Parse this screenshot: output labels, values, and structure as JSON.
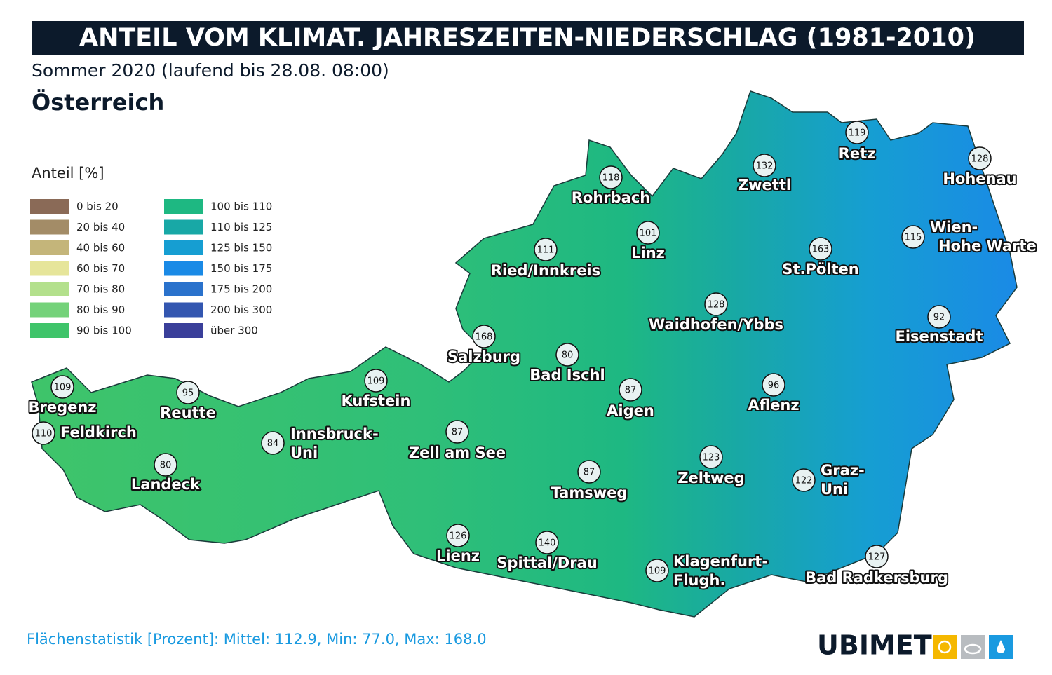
{
  "header": {
    "title": "ANTEIL VOM KLIMAT. JAHRESZEITEN-NIEDERSCHLAG (1981-2010)",
    "subtitle": "Sommer 2020 (laufend bis 28.08. 08:00)",
    "region": "Österreich"
  },
  "legend": {
    "title": "Anteil [%]",
    "items": [
      {
        "label": "0 bis 20",
        "color": "#8a6a57"
      },
      {
        "label": "20 bis 40",
        "color": "#a38c67"
      },
      {
        "label": "40 bis 60",
        "color": "#c4b57a"
      },
      {
        "label": "60 bis 70",
        "color": "#e6e59a"
      },
      {
        "label": "70 bis 80",
        "color": "#b3e08c"
      },
      {
        "label": "80 bis 90",
        "color": "#74d27a"
      },
      {
        "label": "90 bis 100",
        "color": "#3fc46a"
      },
      {
        "label": "100 bis 110",
        "color": "#1eb882"
      },
      {
        "label": "110 bis 125",
        "color": "#18a8a6"
      },
      {
        "label": "125 bis 150",
        "color": "#169ed2"
      },
      {
        "label": "150 bis 175",
        "color": "#1a8ae6"
      },
      {
        "label": "175 bis 200",
        "color": "#2a72cc"
      },
      {
        "label": "200 bis 300",
        "color": "#3356b0"
      },
      {
        "label": "über 300",
        "color": "#3a3f9a"
      }
    ]
  },
  "stations": [
    {
      "value": 119,
      "name": [
        "Retz"
      ]
    },
    {
      "value": 128,
      "name": [
        "Hohenau"
      ]
    },
    {
      "value": 132,
      "name": [
        "Zwettl"
      ]
    },
    {
      "value": 118,
      "name": [
        "Rohrbach"
      ]
    },
    {
      "value": 101,
      "name": [
        "Linz"
      ]
    },
    {
      "value": 111,
      "name": [
        "Ried/Innkreis"
      ]
    },
    {
      "value": 163,
      "name": [
        "St.Pölten"
      ]
    },
    {
      "value": 115,
      "name": [
        "Wien-",
        "Hohe Warte"
      ]
    },
    {
      "value": 128,
      "name": [
        "Waidhofen/Ybbs"
      ]
    },
    {
      "value": 92,
      "name": [
        "Eisenstadt"
      ]
    },
    {
      "value": 168,
      "name": [
        "Salzburg"
      ]
    },
    {
      "value": 80,
      "name": [
        "Bad Ischl"
      ]
    },
    {
      "value": 87,
      "name": [
        "Aigen"
      ]
    },
    {
      "value": 96,
      "name": [
        "Aflenz"
      ]
    },
    {
      "value": 109,
      "name": [
        "Bregenz"
      ]
    },
    {
      "value": 95,
      "name": [
        "Reutte"
      ]
    },
    {
      "value": 109,
      "name": [
        "Kufstein"
      ]
    },
    {
      "value": 110,
      "name": [
        "Feldkirch"
      ]
    },
    {
      "value": 84,
      "name": [
        "Innsbruck-",
        "Uni"
      ]
    },
    {
      "value": 87,
      "name": [
        "Zell am See"
      ]
    },
    {
      "value": 80,
      "name": [
        "Landeck"
      ]
    },
    {
      "value": 123,
      "name": [
        "Zeltweg"
      ]
    },
    {
      "value": 87,
      "name": [
        "Tamsweg"
      ]
    },
    {
      "value": 122,
      "name": [
        "Graz-",
        "Uni"
      ]
    },
    {
      "value": 126,
      "name": [
        "Lienz"
      ]
    },
    {
      "value": 140,
      "name": [
        "Spittal/Drau"
      ]
    },
    {
      "value": 109,
      "name": [
        "Klagenfurt-",
        "Flugh."
      ]
    },
    {
      "value": 127,
      "name": [
        "Bad Radkersburg"
      ]
    }
  ],
  "footer": {
    "statistics": "Flächenstatistik [Prozent]: Mittel: 112.9, Min: 77.0, Max: 168.0",
    "logo": "UBIMET"
  }
}
